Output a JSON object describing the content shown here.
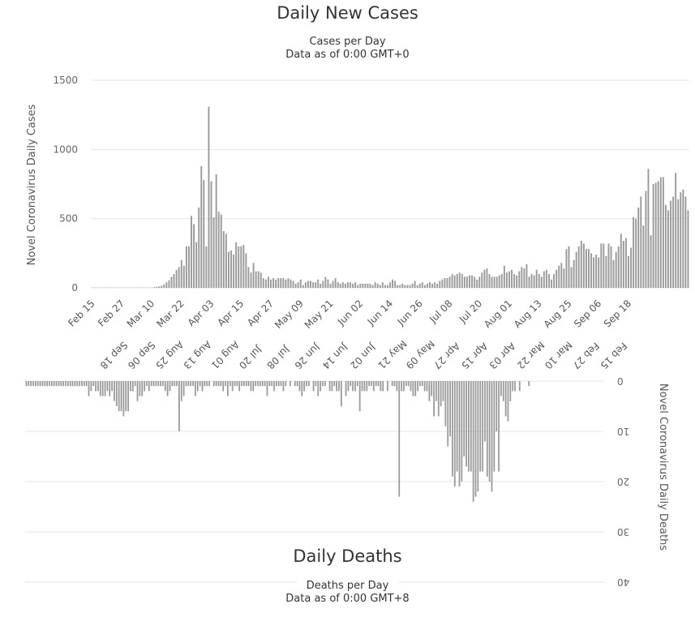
{
  "chart_data": [
    {
      "type": "bar",
      "title": "Daily New Cases",
      "subtitle_line1": "Cases per Day",
      "subtitle_line2": "Data as of 0:00 GMT+0",
      "ylabel": "Novel Coronavirus Daily Cases",
      "ylim": [
        0,
        1500
      ],
      "yticks": [
        0,
        500,
        1000,
        1500
      ],
      "grid": true,
      "start_date": "Feb 15",
      "tick_labels": [
        "Feb 15",
        "Feb 27",
        "Mar 10",
        "Mar 22",
        "Apr 03",
        "Apr 15",
        "Apr 27",
        "May 09",
        "May 21",
        "Jun 02",
        "Jun 14",
        "Jun 26",
        "Jul 08",
        "Jul 20",
        "Aug 01",
        "Aug 13",
        "Aug 25",
        "Sep 06",
        "Sep 18"
      ],
      "values": [
        2,
        2,
        2,
        2,
        2,
        2,
        2,
        2,
        2,
        2,
        2,
        2,
        2,
        2,
        2,
        2,
        2,
        2,
        2,
        2,
        2,
        2,
        2,
        2,
        2,
        5,
        8,
        10,
        15,
        25,
        40,
        55,
        80,
        100,
        130,
        150,
        200,
        160,
        300,
        300,
        520,
        460,
        330,
        580,
        880,
        780,
        300,
        1310,
        770,
        510,
        820,
        550,
        530,
        410,
        390,
        260,
        270,
        240,
        330,
        300,
        300,
        310,
        250,
        150,
        110,
        180,
        120,
        120,
        110,
        70,
        60,
        80,
        60,
        70,
        60,
        70,
        70,
        70,
        60,
        70,
        60,
        50,
        30,
        40,
        60,
        20,
        40,
        50,
        50,
        40,
        40,
        60,
        30,
        50,
        80,
        60,
        30,
        50,
        70,
        40,
        30,
        40,
        30,
        40,
        40,
        30,
        40,
        20,
        30,
        30,
        30,
        30,
        30,
        20,
        40,
        30,
        20,
        40,
        20,
        20,
        40,
        60,
        50,
        20,
        20,
        30,
        20,
        20,
        20,
        30,
        50,
        20,
        30,
        40,
        20,
        30,
        40,
        30,
        40,
        30,
        50,
        60,
        70,
        70,
        80,
        100,
        90,
        100,
        110,
        100,
        80,
        80,
        90,
        90,
        80,
        60,
        80,
        110,
        130,
        140,
        100,
        80,
        80,
        80,
        90,
        100,
        160,
        110,
        120,
        130,
        100,
        90,
        120,
        150,
        140,
        170,
        80,
        100,
        90,
        130,
        100,
        80,
        120,
        130,
        100,
        60,
        100,
        130,
        160,
        180,
        140,
        280,
        300,
        150,
        200,
        260,
        300,
        340,
        320,
        280,
        280,
        250,
        220,
        240,
        220,
        320,
        320,
        230,
        320,
        300,
        200,
        260,
        300,
        390,
        340,
        360,
        230,
        290,
        510,
        500,
        580,
        660,
        450,
        700,
        860,
        380,
        750,
        760,
        770,
        800,
        800,
        600,
        560,
        630,
        660,
        830,
        640,
        690,
        710,
        660,
        560
      ]
    },
    {
      "type": "bar",
      "title": "Daily Deaths",
      "subtitle_line1": "Deaths per Day",
      "subtitle_line2": "Data as of 0:00 GMT+8",
      "ylabel": "Novel Coronavirus Daily Deaths",
      "ylim": [
        0,
        40
      ],
      "yticks": [
        0,
        10,
        20,
        30,
        40
      ],
      "tick_labels": [
        "Feb 15",
        "Feb 27",
        "Mar 10",
        "Mar 22",
        "Apr 03",
        "Apr 15",
        "Apr 27",
        "May 09",
        "May 21",
        "Jun 02",
        "Jun 14",
        "Jun 26",
        "Jul 08",
        "Jul 20",
        "Aug 01",
        "Aug 13",
        "Aug 25",
        "Sep 06",
        "Sep 18"
      ],
      "values": [
        0,
        0,
        0,
        0,
        0,
        0,
        0,
        0,
        0,
        0,
        0,
        0,
        0,
        0,
        0,
        0,
        0,
        0,
        0,
        0,
        0,
        0,
        0,
        0,
        0,
        0,
        0,
        0,
        0,
        0,
        0,
        0,
        1,
        0,
        0,
        0,
        2,
        0,
        2,
        2,
        4,
        8,
        7,
        4,
        3,
        18,
        10,
        18,
        22,
        20,
        19,
        12,
        18,
        18,
        22,
        23,
        24,
        18,
        18,
        17,
        15,
        20,
        21,
        18,
        21,
        19,
        11,
        13,
        9,
        4,
        5,
        7,
        4,
        7,
        3,
        4,
        2,
        2,
        1,
        1,
        2,
        3,
        3,
        2,
        1,
        1,
        2,
        2,
        23,
        2,
        1,
        1,
        0,
        2,
        0,
        2,
        2,
        1,
        1,
        2,
        1,
        1,
        2,
        2,
        2,
        6,
        1,
        2,
        2,
        1,
        2,
        3,
        0,
        5,
        2,
        2,
        1,
        2,
        2,
        0,
        1,
        1,
        2,
        3,
        1,
        2,
        0,
        1,
        1,
        2,
        3,
        2,
        1,
        1,
        0,
        1,
        0,
        1,
        2,
        1,
        1,
        1,
        2,
        1,
        1,
        3,
        1,
        1,
        1,
        1,
        1,
        2,
        2,
        1,
        1,
        1,
        1,
        2,
        1,
        1,
        2,
        1,
        3,
        1,
        2,
        1,
        1,
        1,
        1,
        0,
        1,
        1,
        1,
        2,
        1,
        2,
        3,
        1,
        1,
        1,
        1,
        3,
        4,
        10,
        1,
        1,
        1,
        2,
        3,
        2,
        1,
        1,
        1,
        1,
        1,
        1,
        2,
        1,
        2,
        3,
        3,
        4,
        1,
        2,
        2,
        6,
        6,
        7,
        6,
        6,
        5,
        4,
        2,
        3,
        2,
        3,
        3,
        3,
        2,
        2,
        1,
        2,
        3,
        1,
        1,
        1,
        1,
        1,
        1,
        1,
        1,
        1,
        1,
        1,
        1,
        1,
        1,
        1,
        1,
        1,
        1,
        1,
        1,
        1,
        1,
        1,
        1,
        1,
        1,
        1
      ]
    }
  ]
}
